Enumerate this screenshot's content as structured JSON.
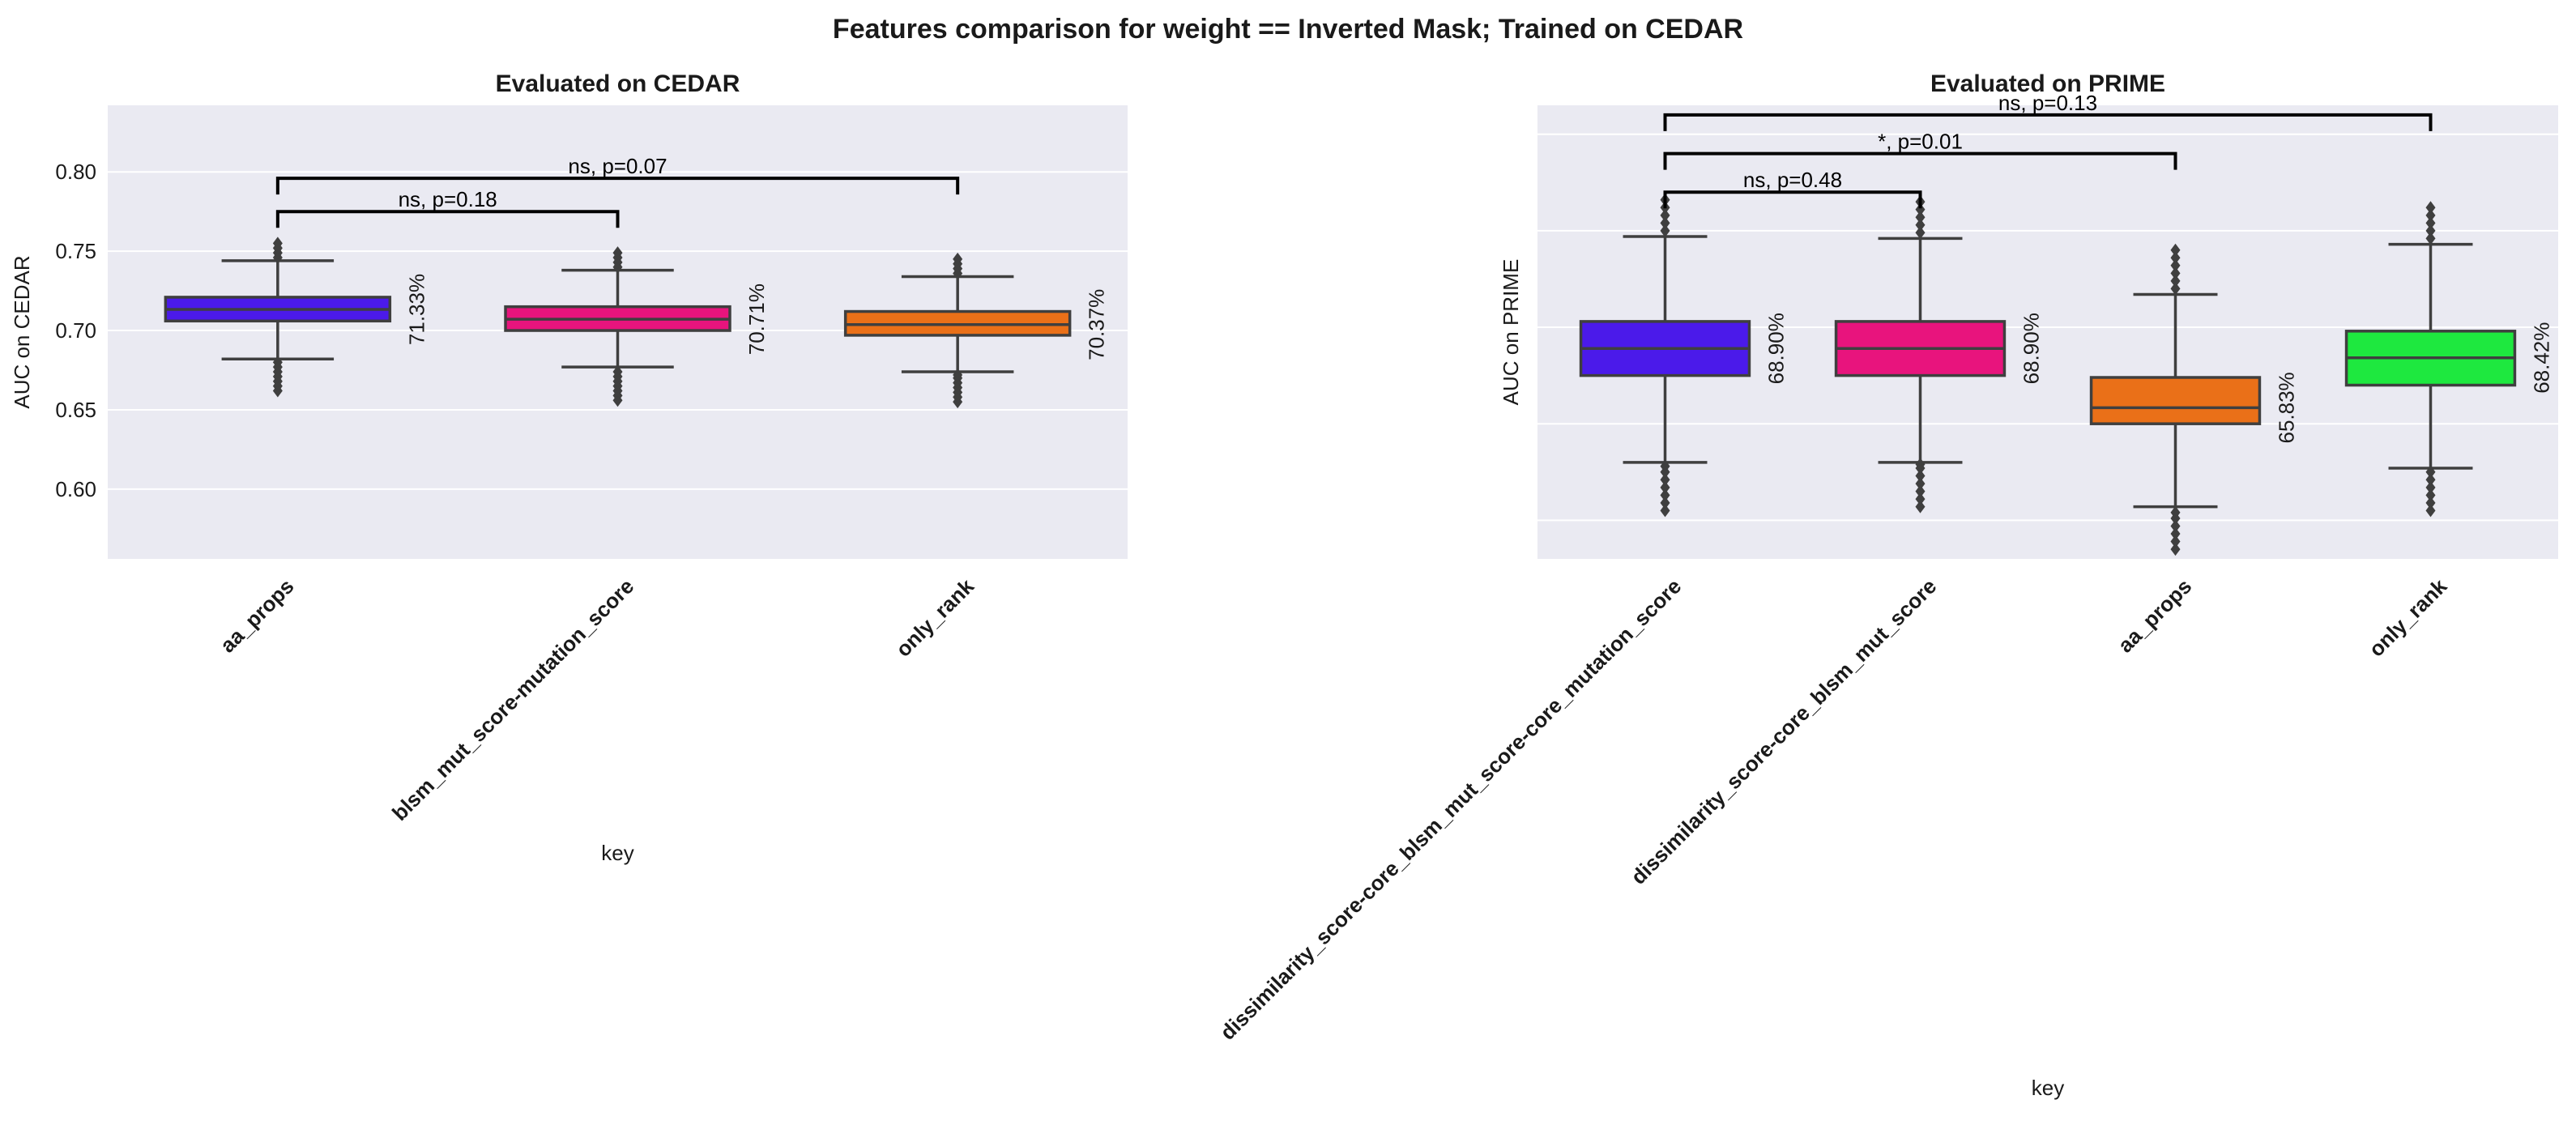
{
  "figure": {
    "suptitle": "Features comparison for weight == Inverted Mask; Trained on CEDAR"
  },
  "colors": {
    "plot_bg": "#eaeaf2",
    "grid": "#ffffff",
    "box_edge": "#3f3f3f",
    "bracket": "#000000",
    "text": "#1a1a1a"
  },
  "chart_data": [
    {
      "type": "box",
      "title": "Evaluated on CEDAR",
      "xlabel": "key",
      "ylabel": "AUC on CEDAR",
      "ylim": [
        0.556,
        0.842
      ],
      "yticks": [
        0.6,
        0.65,
        0.7,
        0.75,
        0.8
      ],
      "ytick_labels": [
        "0.60",
        "0.65",
        "0.70",
        "0.75",
        "0.80"
      ],
      "grid": true,
      "categories": [
        "aa_props",
        "blsm_mut_score-mutation_score",
        "only_rank"
      ],
      "boxes": [
        {
          "q1": 0.706,
          "median": 0.7133,
          "q3": 0.721,
          "whislo": 0.682,
          "whishi": 0.744,
          "color": "#4b1aea",
          "fliers_low": [
            0.662,
            0.665,
            0.668,
            0.671,
            0.674,
            0.677,
            0.68
          ],
          "fliers_high": [
            0.746,
            0.749,
            0.752,
            0.755
          ]
        },
        {
          "q1": 0.7,
          "median": 0.7071,
          "q3": 0.715,
          "whislo": 0.677,
          "whishi": 0.738,
          "color": "#e8147d",
          "fliers_low": [
            0.656,
            0.659,
            0.662,
            0.665,
            0.668,
            0.671,
            0.674
          ],
          "fliers_high": [
            0.74,
            0.743,
            0.746,
            0.749
          ]
        },
        {
          "q1": 0.697,
          "median": 0.7037,
          "q3": 0.712,
          "whislo": 0.674,
          "whishi": 0.734,
          "color": "#ea7018",
          "fliers_low": [
            0.655,
            0.658,
            0.661,
            0.664,
            0.667,
            0.67,
            0.672
          ],
          "fliers_high": [
            0.736,
            0.739,
            0.742,
            0.745
          ]
        }
      ],
      "value_labels": [
        "71.33%",
        "70.71%",
        "70.37%"
      ],
      "annotations": [
        {
          "from": 0,
          "to": 1,
          "y": 0.775,
          "text": "ns, p=0.18"
        },
        {
          "from": 0,
          "to": 2,
          "y": 0.796,
          "text": "ns, p=0.07"
        }
      ]
    },
    {
      "type": "box",
      "title": "Evaluated on PRIME",
      "xlabel": "key",
      "ylabel": "AUC on PRIME",
      "ylim": [
        0.58,
        0.815
      ],
      "yticks": [
        0.6,
        0.65,
        0.7,
        0.75,
        0.8
      ],
      "ytick_labels": [],
      "grid": true,
      "categories": [
        "dissimilarity_score-core_blsm_mut_score-core_mutation_score",
        "dissimilarity_score-core_blsm_mut_score",
        "aa_props",
        "only_rank"
      ],
      "boxes": [
        {
          "q1": 0.675,
          "median": 0.689,
          "q3": 0.703,
          "whislo": 0.63,
          "whishi": 0.747,
          "color": "#4b1aea",
          "fliers_low": [
            0.605,
            0.609,
            0.613,
            0.617,
            0.621,
            0.625,
            0.628
          ],
          "fliers_high": [
            0.75,
            0.754,
            0.758,
            0.762,
            0.766
          ]
        },
        {
          "q1": 0.675,
          "median": 0.689,
          "q3": 0.703,
          "whislo": 0.63,
          "whishi": 0.746,
          "color": "#e8147d",
          "fliers_low": [
            0.607,
            0.611,
            0.615,
            0.619,
            0.623,
            0.627,
            0.629
          ],
          "fliers_high": [
            0.749,
            0.753,
            0.757,
            0.761,
            0.765
          ]
        },
        {
          "q1": 0.65,
          "median": 0.6583,
          "q3": 0.674,
          "whislo": 0.607,
          "whishi": 0.717,
          "color": "#ea7018",
          "fliers_low": [
            0.585,
            0.589,
            0.593,
            0.597,
            0.601,
            0.604
          ],
          "fliers_high": [
            0.72,
            0.724,
            0.728,
            0.732,
            0.736,
            0.74
          ]
        },
        {
          "q1": 0.67,
          "median": 0.6842,
          "q3": 0.698,
          "whislo": 0.627,
          "whishi": 0.743,
          "color": "#1ee83f",
          "fliers_low": [
            0.605,
            0.609,
            0.613,
            0.617,
            0.621,
            0.625
          ],
          "fliers_high": [
            0.746,
            0.75,
            0.754,
            0.758,
            0.762
          ]
        }
      ],
      "value_labels": [
        "68.90%",
        "68.90%",
        "65.83%",
        "68.42%"
      ],
      "annotations": [
        {
          "from": 0,
          "to": 1,
          "y": 0.77,
          "text": "ns, p=0.48"
        },
        {
          "from": 0,
          "to": 2,
          "y": 0.79,
          "text": "*, p=0.01"
        },
        {
          "from": 0,
          "to": 3,
          "y": 0.81,
          "text": "ns, p=0.13"
        }
      ]
    }
  ]
}
